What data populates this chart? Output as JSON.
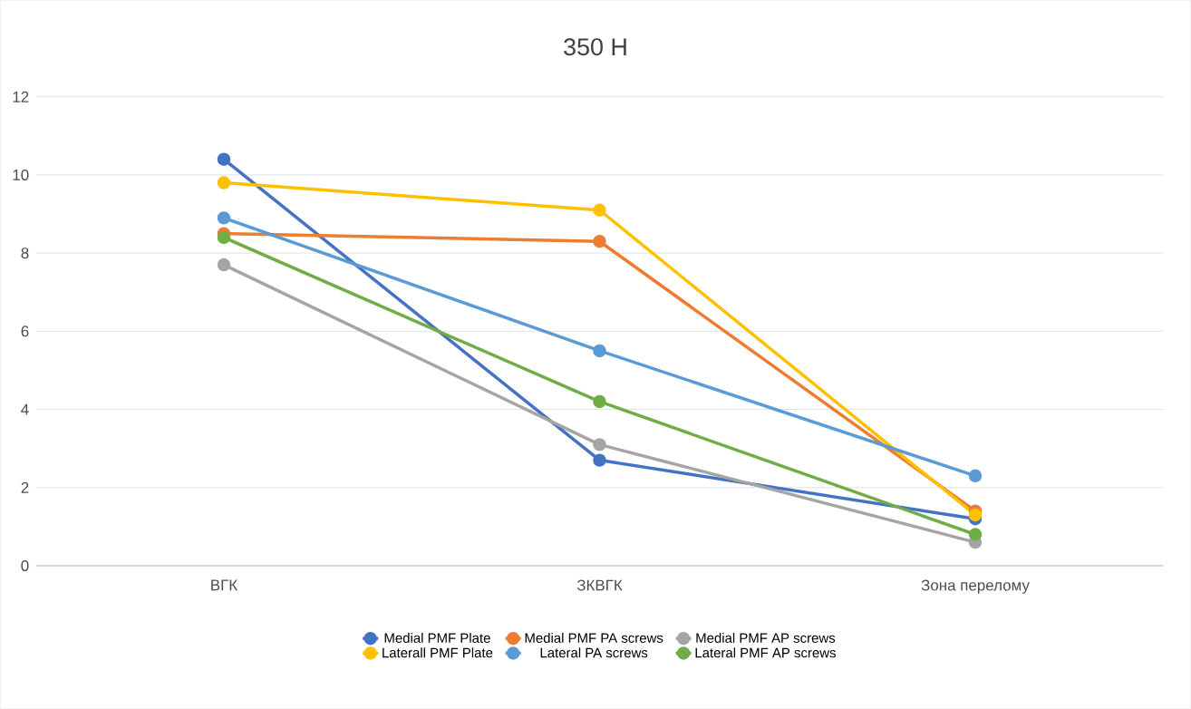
{
  "chart_data": {
    "type": "line",
    "title": "350 Н",
    "categories": [
      "ВГК",
      "ЗКВГК",
      "Зона перелому"
    ],
    "series": [
      {
        "name": "Medial PMF Plate",
        "color": "#4472c4",
        "values": [
          10.4,
          2.7,
          1.2
        ]
      },
      {
        "name": "Medial PMF PA screws",
        "color": "#ed7d31",
        "values": [
          8.5,
          8.3,
          1.4
        ]
      },
      {
        "name": "Medial PMF AP screws",
        "color": "#a5a5a5",
        "values": [
          7.7,
          3.1,
          0.6
        ]
      },
      {
        "name": "Laterall PMF Plate",
        "color": "#ffc000",
        "values": [
          9.8,
          9.1,
          1.3
        ]
      },
      {
        "name": "Lateral PA screws",
        "color": "#5b9bd5",
        "values": [
          8.9,
          5.5,
          2.3
        ]
      },
      {
        "name": "Lateral PMF AP screws",
        "color": "#70ad47",
        "values": [
          8.4,
          4.2,
          0.8
        ]
      }
    ],
    "ylim": [
      0,
      12
    ],
    "yticks": [
      0,
      2,
      4,
      6,
      8,
      10,
      12
    ],
    "grid": "y",
    "legend": "bottom",
    "marker": "circle",
    "line_style": "solid"
  }
}
